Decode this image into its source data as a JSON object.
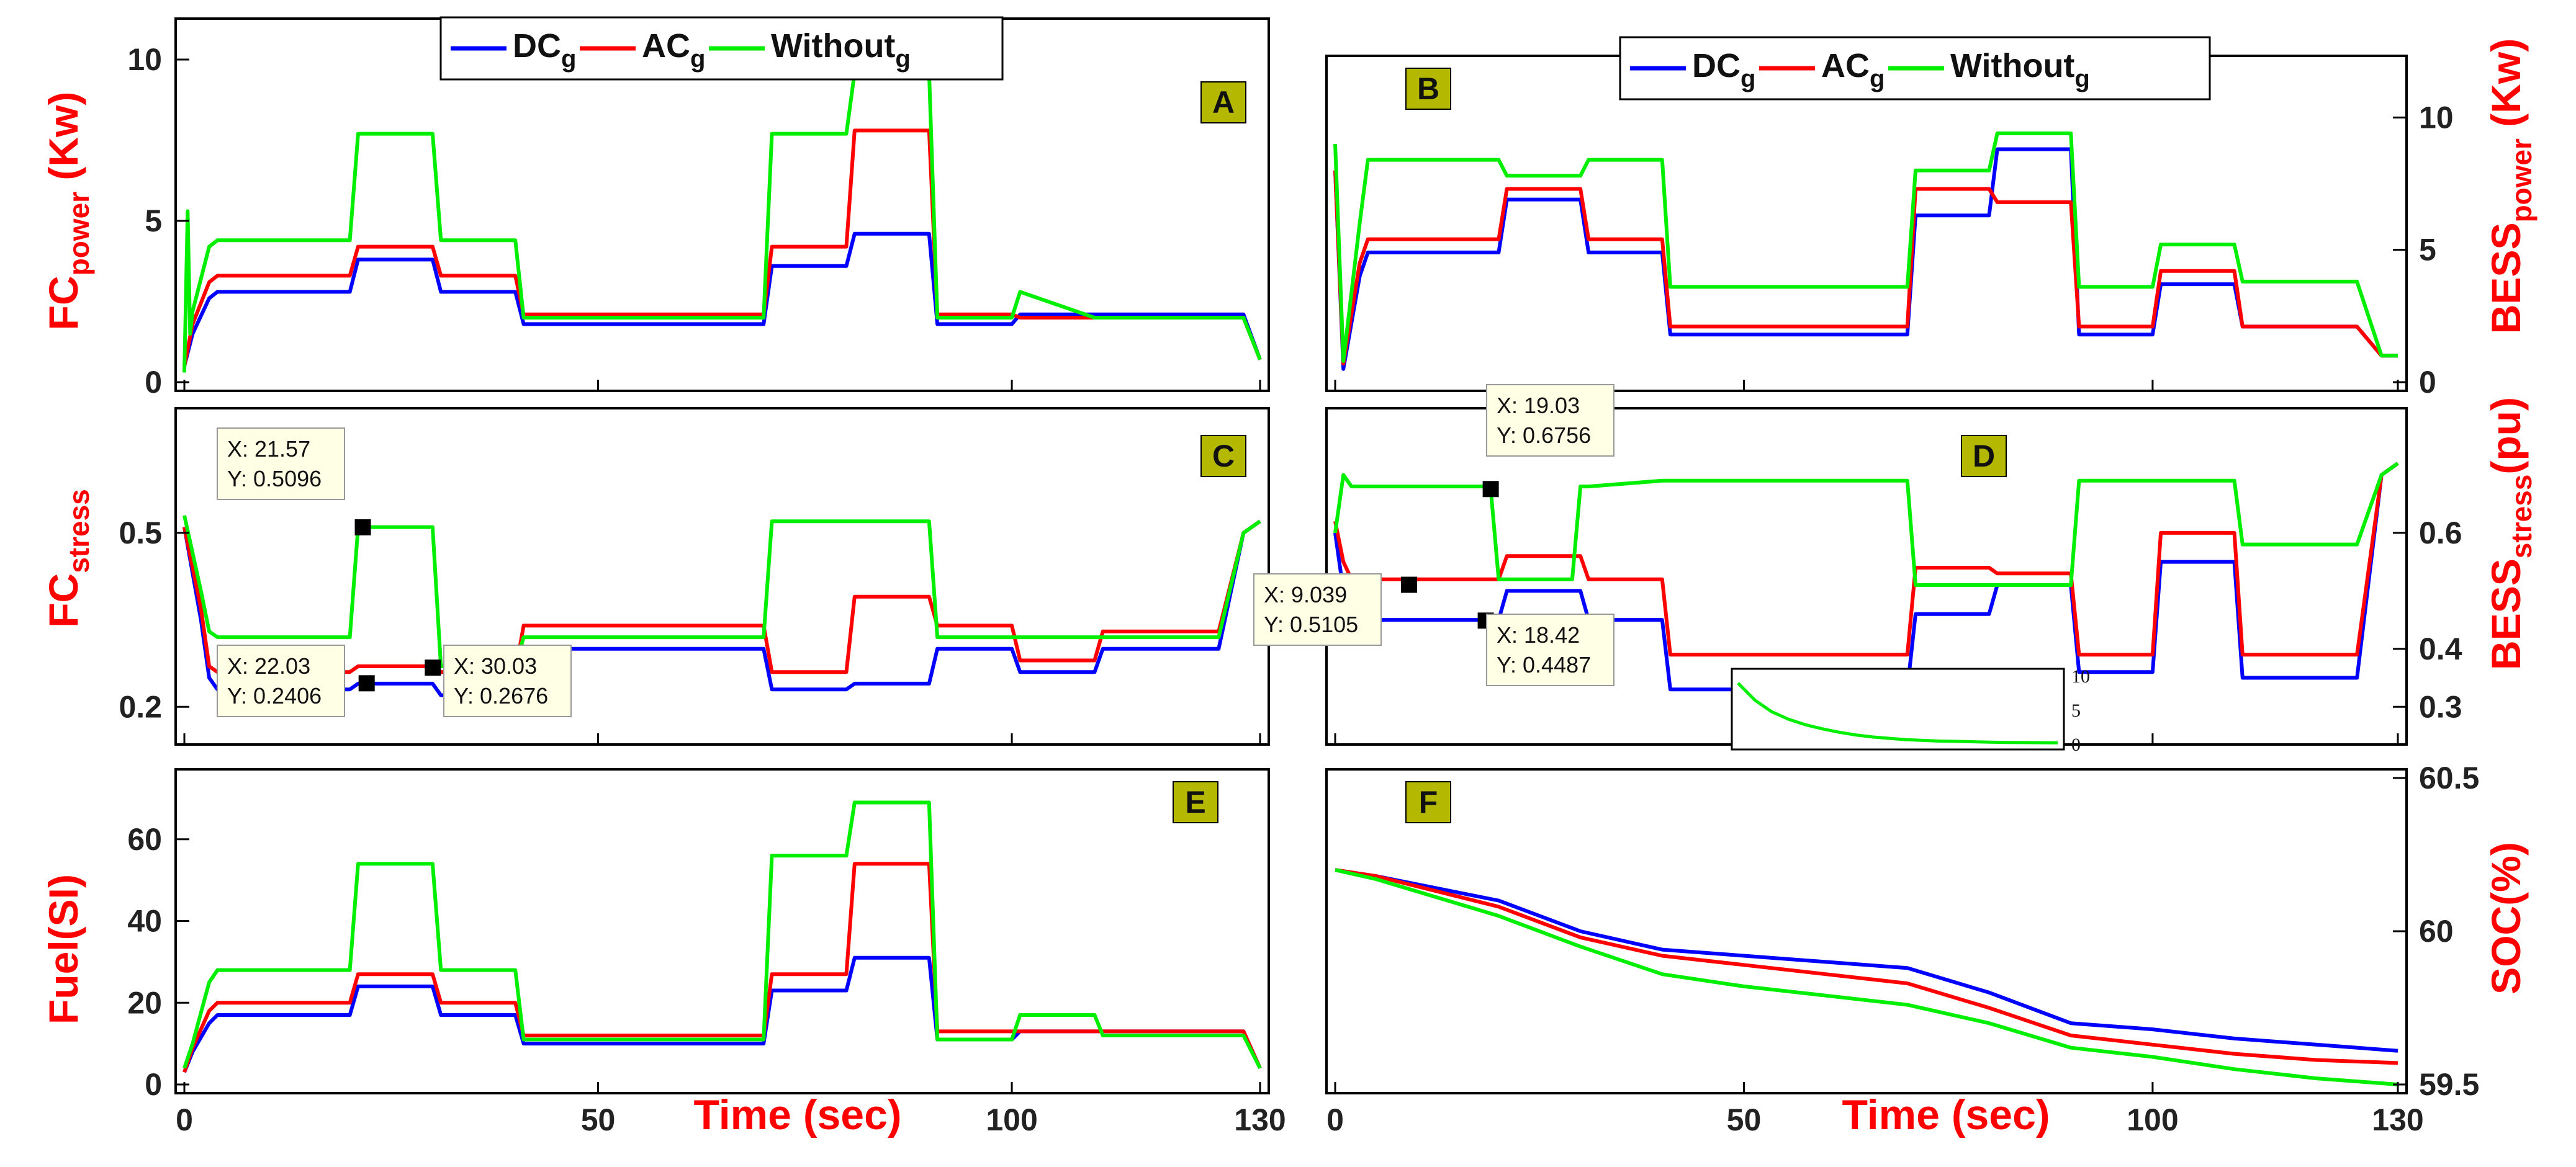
{
  "colors": {
    "DC": "#0000ff",
    "AC": "#ff0000",
    "Without": "#00ee00",
    "axis_label": "#ff0000",
    "tag_bg": "#b5b800",
    "datatip_bg": "#ffffe6"
  },
  "legend": [
    {
      "base": "DC",
      "sub": "g",
      "color": "#0000ff"
    },
    {
      "base": "AC",
      "sub": "g",
      "color": "#ff0000"
    },
    {
      "base": "Without",
      "sub": "g",
      "color": "#00ee00"
    }
  ],
  "chart_data": [
    {
      "id": "A",
      "tag": "A",
      "type": "line",
      "ylabel": {
        "base": "FC",
        "sub": "power",
        "suffix": " (Kw)"
      },
      "xlim": [
        0,
        130
      ],
      "ylim": [
        0,
        11
      ],
      "yticks": [
        0,
        5,
        10
      ],
      "legend": true,
      "series": [
        {
          "name": "DCg",
          "color": "#0000ff",
          "x": [
            0,
            1,
            3,
            4,
            20,
            21,
            30,
            31,
            40,
            41,
            70,
            71,
            80,
            81,
            90,
            91,
            100,
            101,
            128,
            130
          ],
          "y": [
            0.5,
            1.5,
            2.6,
            2.8,
            2.8,
            3.8,
            3.8,
            2.8,
            2.8,
            1.8,
            1.8,
            3.6,
            3.6,
            4.6,
            4.6,
            1.8,
            1.8,
            2.1,
            2.1,
            0.7
          ]
        },
        {
          "name": "ACg",
          "color": "#ff0000",
          "x": [
            0,
            1,
            3,
            4,
            20,
            21,
            30,
            31,
            40,
            41,
            70,
            71,
            80,
            81,
            90,
            91,
            100,
            101,
            128,
            130
          ],
          "y": [
            0.5,
            1.8,
            3.1,
            3.3,
            3.3,
            4.2,
            4.2,
            3.3,
            3.3,
            2.1,
            2.1,
            4.2,
            4.2,
            7.8,
            7.8,
            2.1,
            2.1,
            2.0,
            2.0,
            0.7
          ]
        },
        {
          "name": "Withoutg",
          "color": "#00ee00",
          "x": [
            0,
            0.4,
            0.7,
            1,
            3,
            4,
            20,
            21,
            30,
            31,
            40,
            41,
            70,
            71,
            80,
            81,
            90,
            91,
            100,
            101,
            110,
            128,
            130
          ],
          "y": [
            0.3,
            5.3,
            1.5,
            2.2,
            4.2,
            4.4,
            4.4,
            7.7,
            7.7,
            4.4,
            4.4,
            2.0,
            2.0,
            7.7,
            7.7,
            9.6,
            9.6,
            2.0,
            2.0,
            2.8,
            2.0,
            2.0,
            0.7
          ]
        }
      ]
    },
    {
      "id": "B",
      "tag": "B",
      "type": "line",
      "ylabel": {
        "base": "BESS",
        "sub": "power",
        "suffix": " (Kw)"
      },
      "xlim": [
        0,
        130
      ],
      "ylim": [
        0,
        12
      ],
      "yticks": [
        0,
        5,
        10
      ],
      "legend": true,
      "series": [
        {
          "name": "DCg",
          "color": "#0000ff",
          "x": [
            0,
            1,
            3,
            4,
            20,
            21,
            30,
            31,
            40,
            41,
            70,
            71,
            80,
            81,
            90,
            91,
            100,
            101,
            110,
            111,
            125,
            128,
            130
          ],
          "y": [
            8,
            0.5,
            4,
            4.9,
            4.9,
            6.9,
            6.9,
            4.9,
            4.9,
            1.8,
            1.8,
            6.3,
            6.3,
            8.8,
            8.8,
            1.8,
            1.8,
            3.7,
            3.7,
            2.1,
            2.1,
            1,
            1
          ]
        },
        {
          "name": "ACg",
          "color": "#ff0000",
          "x": [
            0,
            1,
            3,
            4,
            20,
            21,
            30,
            31,
            40,
            41,
            70,
            71,
            80,
            81,
            90,
            91,
            100,
            101,
            110,
            111,
            125,
            128,
            130
          ],
          "y": [
            8,
            0.7,
            4.5,
            5.4,
            5.4,
            7.3,
            7.3,
            5.4,
            5.4,
            2.1,
            2.1,
            7.3,
            7.3,
            6.8,
            6.8,
            2.1,
            2.1,
            4.2,
            4.2,
            2.1,
            2.1,
            1,
            1
          ]
        },
        {
          "name": "Withoutg",
          "color": "#00ee00",
          "x": [
            0,
            1,
            3,
            4,
            20,
            21,
            30,
            31,
            40,
            41,
            70,
            71,
            80,
            81,
            90,
            91,
            100,
            101,
            110,
            111,
            125,
            128,
            130
          ],
          "y": [
            9,
            0.8,
            6,
            8.4,
            8.4,
            7.8,
            7.8,
            8.4,
            8.4,
            3.6,
            3.6,
            8.0,
            8.0,
            9.4,
            9.4,
            3.6,
            3.6,
            5.2,
            5.2,
            3.8,
            3.8,
            1,
            1
          ]
        }
      ]
    },
    {
      "id": "C",
      "tag": "C",
      "type": "line",
      "ylabel": {
        "base": "FC",
        "sub": "stress",
        "suffix": ""
      },
      "xlim": [
        0,
        130
      ],
      "ylim": [
        0.15,
        0.7
      ],
      "yticks": [
        0.2,
        0.5
      ],
      "legend": false,
      "series": [
        {
          "name": "DCg",
          "color": "#0000ff",
          "x": [
            0,
            2,
            3,
            4,
            20,
            21,
            30,
            31,
            40,
            41,
            70,
            71,
            80,
            81,
            90,
            91,
            100,
            101,
            110,
            111,
            125,
            128,
            130
          ],
          "y": [
            0.51,
            0.35,
            0.25,
            0.23,
            0.23,
            0.24,
            0.24,
            0.22,
            0.22,
            0.3,
            0.3,
            0.23,
            0.23,
            0.24,
            0.24,
            0.3,
            0.3,
            0.26,
            0.26,
            0.3,
            0.3,
            0.5,
            0.52
          ]
        },
        {
          "name": "ACg",
          "color": "#ff0000",
          "x": [
            0,
            2,
            3,
            4,
            20,
            21,
            30,
            31,
            40,
            41,
            70,
            71,
            80,
            81,
            90,
            91,
            100,
            101,
            110,
            111,
            125,
            128,
            130
          ],
          "y": [
            0.51,
            0.37,
            0.27,
            0.26,
            0.26,
            0.27,
            0.27,
            0.26,
            0.26,
            0.34,
            0.34,
            0.26,
            0.26,
            0.39,
            0.39,
            0.34,
            0.34,
            0.28,
            0.28,
            0.33,
            0.33,
            0.5,
            0.52
          ]
        },
        {
          "name": "Withoutg",
          "color": "#00ee00",
          "x": [
            0,
            2,
            3,
            4,
            20,
            21,
            30,
            31,
            40,
            41,
            70,
            71,
            80,
            81,
            90,
            91,
            100,
            101,
            110,
            111,
            125,
            128,
            130
          ],
          "y": [
            0.53,
            0.4,
            0.33,
            0.32,
            0.32,
            0.51,
            0.51,
            0.27,
            0.27,
            0.32,
            0.32,
            0.52,
            0.52,
            0.52,
            0.52,
            0.32,
            0.32,
            0.32,
            0.32,
            0.32,
            0.32,
            0.5,
            0.52
          ]
        }
      ]
    },
    {
      "id": "D",
      "tag": "D",
      "type": "line",
      "ylabel": {
        "base": "BESS",
        "sub": "stress",
        "suffix": "(pu)"
      },
      "xlim": [
        0,
        130
      ],
      "ylim": [
        0.25,
        0.8
      ],
      "yticks": [
        0.3,
        0.4,
        0.6
      ],
      "legend": false,
      "series": [
        {
          "name": "DCg",
          "color": "#0000ff",
          "x": [
            0,
            1,
            2,
            20,
            21,
            30,
            31,
            40,
            41,
            70,
            71,
            80,
            81,
            90,
            91,
            100,
            101,
            110,
            111,
            125,
            128,
            130
          ],
          "y": [
            0.6,
            0.5,
            0.45,
            0.45,
            0.5,
            0.5,
            0.45,
            0.45,
            0.33,
            0.33,
            0.46,
            0.46,
            0.51,
            0.51,
            0.36,
            0.36,
            0.55,
            0.55,
            0.35,
            0.35,
            0.7,
            0.72
          ]
        },
        {
          "name": "ACg",
          "color": "#ff0000",
          "x": [
            0,
            1,
            2,
            20,
            21,
            30,
            31,
            40,
            41,
            70,
            71,
            80,
            81,
            90,
            91,
            100,
            101,
            110,
            111,
            125,
            128,
            130
          ],
          "y": [
            0.62,
            0.55,
            0.52,
            0.52,
            0.56,
            0.56,
            0.52,
            0.52,
            0.39,
            0.39,
            0.54,
            0.54,
            0.53,
            0.53,
            0.39,
            0.39,
            0.6,
            0.6,
            0.39,
            0.39,
            0.7,
            0.72
          ]
        },
        {
          "name": "Withoutg",
          "color": "#00ee00",
          "x": [
            0,
            1,
            2,
            19,
            20,
            21,
            29,
            30,
            31,
            40,
            41,
            70,
            71,
            80,
            81,
            90,
            91,
            100,
            101,
            110,
            111,
            125,
            128,
            130
          ],
          "y": [
            0.6,
            0.7,
            0.68,
            0.68,
            0.52,
            0.52,
            0.52,
            0.68,
            0.68,
            0.69,
            0.69,
            0.69,
            0.51,
            0.51,
            0.51,
            0.51,
            0.69,
            0.69,
            0.69,
            0.69,
            0.58,
            0.58,
            0.7,
            0.72
          ]
        }
      ]
    },
    {
      "id": "E",
      "tag": "E",
      "type": "line",
      "ylabel": {
        "base": "Fuel(SI)",
        "sub": "",
        "suffix": ""
      },
      "xlim": [
        0,
        130
      ],
      "ylim": [
        0,
        75
      ],
      "yticks": [
        0,
        20,
        40,
        60
      ],
      "legend": false,
      "series": [
        {
          "name": "DCg",
          "color": "#0000ff",
          "x": [
            0,
            1,
            3,
            4,
            20,
            21,
            30,
            31,
            40,
            41,
            70,
            71,
            80,
            81,
            90,
            91,
            100,
            101,
            128,
            130
          ],
          "y": [
            3,
            8,
            15,
            17,
            17,
            24,
            24,
            17,
            17,
            10,
            10,
            23,
            23,
            31,
            31,
            11,
            11,
            13,
            13,
            4
          ]
        },
        {
          "name": "ACg",
          "color": "#ff0000",
          "x": [
            0,
            1,
            3,
            4,
            20,
            21,
            30,
            31,
            40,
            41,
            70,
            71,
            80,
            81,
            90,
            91,
            100,
            101,
            128,
            130
          ],
          "y": [
            3,
            9,
            18,
            20,
            20,
            27,
            27,
            20,
            20,
            12,
            12,
            27,
            27,
            54,
            54,
            13,
            13,
            13,
            13,
            4
          ]
        },
        {
          "name": "Withoutg",
          "color": "#00ee00",
          "x": [
            0,
            1,
            3,
            4,
            20,
            21,
            30,
            31,
            40,
            41,
            70,
            71,
            80,
            81,
            90,
            91,
            100,
            101,
            110,
            111,
            128,
            130
          ],
          "y": [
            4,
            10,
            25,
            28,
            28,
            54,
            54,
            28,
            28,
            11,
            11,
            56,
            56,
            69,
            69,
            11,
            11,
            17,
            17,
            12,
            12,
            4
          ]
        }
      ]
    },
    {
      "id": "F",
      "tag": "F",
      "type": "line",
      "ylabel": {
        "base": "SOC(%)",
        "sub": "",
        "suffix": ""
      },
      "xlim": [
        0,
        130
      ],
      "ylim": [
        59.5,
        60.5
      ],
      "yticks": [
        59.5,
        60,
        60.5
      ],
      "legend": false,
      "series": [
        {
          "name": "DCg",
          "color": "#0000ff",
          "x": [
            0,
            5,
            20,
            30,
            40,
            50,
            60,
            70,
            80,
            90,
            100,
            110,
            120,
            130
          ],
          "y": [
            60.2,
            60.18,
            60.1,
            60.0,
            59.94,
            59.92,
            59.9,
            59.88,
            59.8,
            59.7,
            59.68,
            59.65,
            59.63,
            59.61
          ]
        },
        {
          "name": "ACg",
          "color": "#ff0000",
          "x": [
            0,
            5,
            20,
            30,
            40,
            50,
            60,
            70,
            80,
            90,
            100,
            110,
            120,
            130
          ],
          "y": [
            60.2,
            60.18,
            60.08,
            59.98,
            59.92,
            59.89,
            59.86,
            59.83,
            59.75,
            59.66,
            59.63,
            59.6,
            59.58,
            59.57
          ]
        },
        {
          "name": "Withoutg",
          "color": "#00ee00",
          "x": [
            0,
            5,
            20,
            30,
            40,
            50,
            60,
            70,
            80,
            90,
            100,
            110,
            120,
            130
          ],
          "y": [
            60.2,
            60.17,
            60.05,
            59.95,
            59.86,
            59.82,
            59.79,
            59.76,
            59.7,
            59.62,
            59.59,
            59.55,
            59.52,
            59.5
          ]
        }
      ]
    }
  ],
  "x_axis": {
    "ticks": [
      0,
      50,
      100,
      130
    ],
    "label": "Time (sec)"
  },
  "datatips": [
    {
      "panel": "C",
      "x": 21.57,
      "y": 0.5096,
      "lines": [
        "X: 21.57",
        "Y: 0.5096"
      ]
    },
    {
      "panel": "C",
      "x": 22.03,
      "y": 0.2406,
      "lines": [
        "X: 22.03",
        "Y: 0.2406"
      ]
    },
    {
      "panel": "C",
      "x": 30.03,
      "y": 0.2676,
      "lines": [
        "X: 30.03",
        "Y: 0.2676"
      ]
    },
    {
      "panel": "D",
      "x": 9.039,
      "y": 0.5105,
      "lines": [
        "X: 9.039",
        "Y: 0.5105"
      ]
    },
    {
      "panel": "D",
      "x": 19.03,
      "y": 0.6756,
      "lines": [
        "X: 19.03",
        "Y: 0.6756"
      ]
    },
    {
      "panel": "D",
      "x": 18.42,
      "y": 0.4487,
      "lines": [
        "X: 18.42",
        "Y: 0.4487"
      ]
    }
  ],
  "inset": {
    "panel": "D",
    "yticks": [
      0,
      5,
      10
    ],
    "ylim": [
      0,
      10
    ],
    "series": {
      "name": "Withoutg",
      "color": "#00ee00",
      "values": [
        9,
        6.5,
        4.8,
        3.7,
        2.9,
        2.3,
        1.8,
        1.4,
        1.1,
        0.9,
        0.7,
        0.6,
        0.5,
        0.45,
        0.4,
        0.35,
        0.3,
        0.28,
        0.26,
        0.25
      ]
    }
  }
}
